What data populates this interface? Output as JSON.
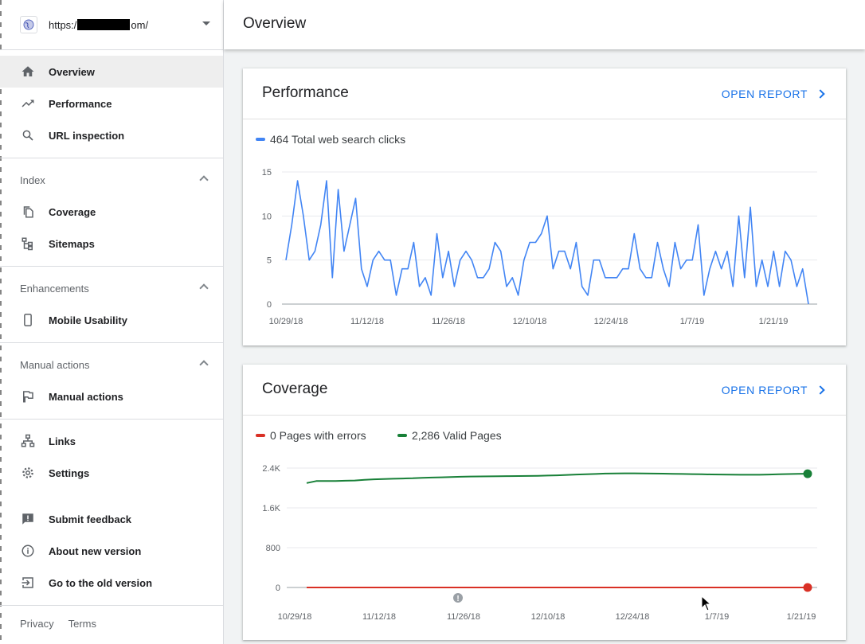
{
  "property": {
    "url_prefix": "https:/",
    "url_suffix": "om/"
  },
  "nav": {
    "overview": "Overview",
    "performance": "Performance",
    "url_inspection": "URL inspection",
    "index_header": "Index",
    "coverage": "Coverage",
    "sitemaps": "Sitemaps",
    "enhancements_header": "Enhancements",
    "mobile_usability": "Mobile Usability",
    "manual_actions_header": "Manual actions",
    "manual_actions": "Manual actions",
    "links": "Links",
    "settings": "Settings",
    "submit_feedback": "Submit feedback",
    "about_new_version": "About new version",
    "old_version": "Go to the old version"
  },
  "footer": {
    "privacy": "Privacy",
    "terms": "Terms"
  },
  "header": {
    "title": "Overview"
  },
  "performance_card": {
    "title": "Performance",
    "open_report": "OPEN REPORT",
    "legend": "464 Total web search clicks"
  },
  "coverage_card": {
    "title": "Coverage",
    "open_report": "OPEN REPORT",
    "legend_errors": "0 Pages with errors",
    "legend_valid": "2,286 Valid Pages"
  },
  "colors": {
    "clicks": "#4285f4",
    "errors": "#d93025",
    "valid": "#188038",
    "accent": "#1a73e8"
  },
  "chart_data": [
    {
      "type": "line",
      "title": "",
      "series": [
        {
          "name": "464 Total web search clicks",
          "values": [
            5,
            9,
            14,
            10,
            5,
            6,
            9,
            14,
            3,
            13,
            6,
            9,
            12,
            4,
            2,
            5,
            6,
            5,
            5,
            1,
            4,
            4,
            7,
            2,
            3,
            1,
            8,
            3,
            6,
            2,
            5,
            6,
            5,
            3,
            3,
            4,
            7,
            6,
            2,
            3,
            1,
            5,
            7,
            7,
            8,
            10,
            4,
            6,
            6,
            4,
            7,
            2,
            1,
            5,
            5,
            3,
            3,
            3,
            4,
            4,
            8,
            4,
            3,
            3,
            7,
            4,
            2,
            7,
            4,
            5,
            5,
            9,
            1,
            4,
            6,
            4,
            6,
            2,
            10,
            3,
            11,
            2,
            5,
            2,
            6,
            2,
            6,
            5,
            2,
            4,
            0
          ]
        }
      ],
      "x_tick_labels": [
        "10/29/18",
        "11/12/18",
        "11/26/18",
        "12/10/18",
        "12/24/18",
        "1/7/19",
        "1/21/19"
      ],
      "y_tick_labels": [
        "15",
        "10",
        "5",
        "0"
      ],
      "ylim": [
        0,
        15
      ],
      "grid": true
    },
    {
      "type": "line",
      "title": "",
      "series": [
        {
          "name": "2,286 Valid Pages",
          "values": [
            2100,
            2140,
            2140,
            2140,
            2145,
            2150,
            2165,
            2175,
            2180,
            2185,
            2190,
            2195,
            2205,
            2210,
            2215,
            2220,
            2225,
            2230,
            2232,
            2234,
            2236,
            2238,
            2240,
            2242,
            2245,
            2250,
            2255,
            2262,
            2270,
            2275,
            2282,
            2290,
            2292,
            2294,
            2294,
            2293,
            2290,
            2288,
            2285,
            2282,
            2278,
            2275,
            2272,
            2270,
            2268,
            2266,
            2266,
            2266,
            2270,
            2275,
            2280,
            2284,
            2286
          ]
        },
        {
          "name": "0 Pages with errors",
          "values": [
            0,
            0,
            0,
            0,
            0,
            0,
            0,
            0,
            0,
            0,
            0,
            0,
            0,
            0,
            0,
            0,
            0,
            0,
            0,
            0,
            0,
            0,
            0,
            0,
            0,
            0,
            0,
            0,
            0,
            0,
            0,
            0,
            0,
            0,
            0,
            0,
            0,
            0,
            0,
            0,
            0,
            0,
            0,
            0,
            0,
            0,
            0,
            0,
            0,
            0,
            0,
            0,
            0
          ]
        }
      ],
      "x_tick_labels": [
        "10/29/18",
        "11/12/18",
        "11/26/18",
        "12/10/18",
        "12/24/18",
        "1/7/19",
        "1/21/19"
      ],
      "y_tick_labels": [
        "2.4K",
        "1.6K",
        "800",
        "0"
      ],
      "ylim": [
        0,
        2400
      ],
      "annotations": [
        {
          "label": "!",
          "x": "11/26/18"
        }
      ],
      "grid": true
    }
  ]
}
